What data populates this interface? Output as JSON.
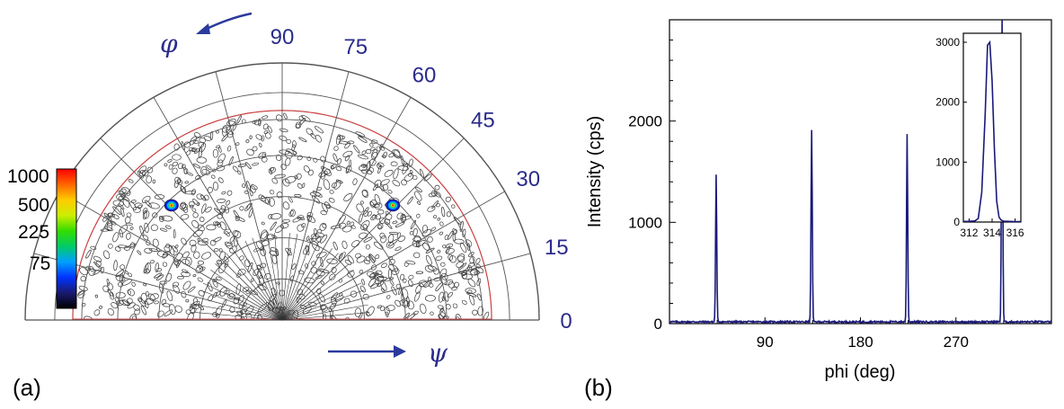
{
  "panels": {
    "a_label": "(a)",
    "b_label": "(b)"
  },
  "chart_data": [
    {
      "type": "polar pole figure",
      "panel": "(a)",
      "radial_axis_symbol": "ψ",
      "angular_axis_symbol": "φ",
      "angular_ticks": [
        "0",
        "15",
        "30",
        "45",
        "60",
        "75",
        "90"
      ],
      "angular_tick_values": [
        0,
        15,
        30,
        45,
        60,
        75,
        90
      ],
      "colorbar": {
        "labels": [
          "1000",
          "500",
          "225",
          "75"
        ],
        "label_values": [
          1000,
          500,
          225,
          75
        ],
        "colors": [
          "#000000",
          "#1a1a70",
          "#0033ff",
          "#00a0ff",
          "#00cc66",
          "#33dd00",
          "#ccee00",
          "#ffcc00",
          "#ff6600",
          "#ff0000"
        ]
      },
      "hot_spots": [
        {
          "phi_deg": 134,
          "psi_frac": 0.62
        },
        {
          "phi_deg": 46,
          "psi_frac": 0.62
        }
      ]
    },
    {
      "type": "line",
      "panel": "(b)",
      "xlabel": "phi  (deg)",
      "ylabel": "Intensity (cps)",
      "xlim": [
        0,
        360
      ],
      "ylim": [
        0,
        3000
      ],
      "xticks": [
        90,
        180,
        270
      ],
      "xtick_labels": [
        "90",
        "180",
        "270"
      ],
      "yticks": [
        0,
        1000,
        2000
      ],
      "ytick_labels": [
        "0",
        "1000",
        "2000"
      ],
      "peaks": [
        {
          "x": 44,
          "y": 1450
        },
        {
          "x": 134,
          "y": 1900
        },
        {
          "x": 224,
          "y": 1850
        },
        {
          "x": 313.5,
          "y": 3000
        }
      ],
      "baseline": 10,
      "color": "#1a1a7a",
      "inset": {
        "xlim": [
          311.5,
          316.5
        ],
        "ylim": [
          0,
          3150
        ],
        "xticks": [
          312,
          314,
          316
        ],
        "xtick_labels": [
          "312",
          "314",
          "316"
        ],
        "yticks": [
          0,
          1000,
          2000,
          3000
        ],
        "ytick_labels": [
          "0",
          "1000",
          "2000",
          "3000"
        ],
        "x": [
          311.5,
          312.0,
          312.5,
          312.8,
          313.1,
          313.4,
          313.6,
          313.8,
          314.0,
          314.2,
          314.4,
          314.6,
          314.8,
          315.0,
          315.5,
          316.0,
          316.5
        ],
        "y": [
          10,
          12,
          18,
          60,
          500,
          1800,
          2950,
          3000,
          2350,
          1200,
          350,
          80,
          30,
          15,
          10,
          8,
          8
        ]
      }
    }
  ]
}
